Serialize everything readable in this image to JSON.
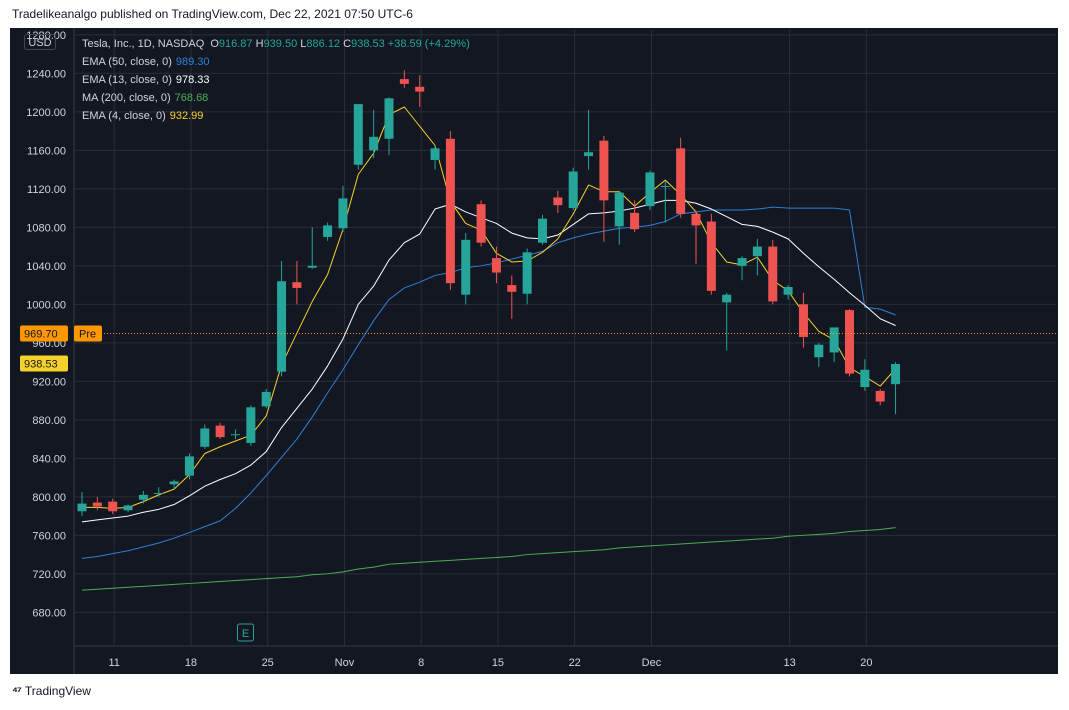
{
  "header": {
    "text": "Tradelikeanalgo published on TradingView.com, Dec 22, 2021 07:50 UTC-6"
  },
  "footer": {
    "brand": "TradingView"
  },
  "currency_button": "USD",
  "legend": {
    "symbol": "Tesla, Inc., 1D, NASDAQ",
    "ohlc": [
      {
        "k": "O",
        "v": "916.87"
      },
      {
        "k": "H",
        "v": "939.50"
      },
      {
        "k": "L",
        "v": "886.12"
      },
      {
        "k": "C",
        "v": "938.53"
      }
    ],
    "change": "+38.59 (+4.29%)",
    "studies": [
      {
        "label": "EMA (50, close, 0)",
        "value": "989.30",
        "color": "#2f7fd9"
      },
      {
        "label": "EMA (13, close, 0)",
        "value": "978.33",
        "color": "#ffffff"
      },
      {
        "label": "MA (200, close, 0)",
        "value": "768.68",
        "color": "#4caf50"
      },
      {
        "label": "EMA (4, close, 0)",
        "value": "932.99",
        "color": "#f5d22a"
      }
    ]
  },
  "colors": {
    "up": "#26a69a",
    "down": "#ef5350",
    "ema50": "#2f7fd9",
    "ema13": "#ffffff",
    "ma200": "#4caf50",
    "ema4": "#f5d22a",
    "pre": "#ff9800",
    "last": "#f5d22a"
  },
  "price_labels": [
    {
      "value": 969.7,
      "text": "969.70",
      "tag": "Pre",
      "kind": "pre"
    },
    {
      "value": 938.53,
      "text": "938.53",
      "kind": "last"
    }
  ],
  "event_marker": {
    "label": "E",
    "bar": 10
  },
  "chart_data": {
    "type": "candlestick",
    "ylim": [
      645,
      1285
    ],
    "y_ticks": [
      1280,
      1240,
      1200,
      1160,
      1120,
      1080,
      1040,
      1000,
      960,
      920,
      880,
      840,
      800,
      760,
      720,
      680
    ],
    "y_tick_labels": [
      "1280.00",
      "1240.00",
      "1200.00",
      "1160.00",
      "1120.00",
      "1080.00",
      "1040.00",
      "1000.00",
      "960.00",
      "920.00",
      "880.00",
      "840.00",
      "800.00",
      "760.00",
      "720.00",
      "680.00"
    ],
    "x_ticks": [
      {
        "bar": 2,
        "label": "11"
      },
      {
        "bar": 7,
        "label": "18"
      },
      {
        "bar": 12,
        "label": "25"
      },
      {
        "bar": 17,
        "label": "Nov"
      },
      {
        "bar": 22,
        "label": "8"
      },
      {
        "bar": 27,
        "label": "15"
      },
      {
        "bar": 32,
        "label": "22"
      },
      {
        "bar": 37,
        "label": "Dec"
      },
      {
        "bar": 46,
        "label": "13"
      },
      {
        "bar": 51,
        "label": "20"
      }
    ],
    "x_count": 55,
    "candles": [
      [
        785,
        805,
        780,
        793
      ],
      [
        794,
        800,
        786,
        790
      ],
      [
        795,
        798,
        782,
        785
      ],
      [
        786,
        792,
        784,
        791
      ],
      [
        797,
        806,
        793,
        802
      ],
      [
        804,
        810,
        800,
        804
      ],
      [
        813,
        818,
        808,
        816
      ],
      [
        822,
        845,
        818,
        842
      ],
      [
        852,
        875,
        850,
        871
      ],
      [
        874,
        877,
        860,
        862
      ],
      [
        864,
        870,
        860,
        865
      ],
      [
        856,
        895,
        853,
        893
      ],
      [
        894,
        912,
        892,
        909
      ],
      [
        930,
        1045,
        925,
        1024
      ],
      [
        1023,
        1045,
        1000,
        1017
      ],
      [
        1038,
        1080,
        1037,
        1040
      ],
      [
        1070,
        1085,
        1066,
        1082
      ],
      [
        1079,
        1123,
        1075,
        1110
      ],
      [
        1145,
        1208,
        1140,
        1208
      ],
      [
        1160,
        1202,
        1152,
        1174
      ],
      [
        1172,
        1215,
        1155,
        1214
      ],
      [
        1234,
        1243,
        1225,
        1229
      ],
      [
        1226,
        1238,
        1205,
        1221
      ],
      [
        1150,
        1165,
        1140,
        1162
      ],
      [
        1172,
        1180,
        1015,
        1022
      ],
      [
        1010,
        1074,
        1000,
        1067
      ],
      [
        1104,
        1108,
        1060,
        1064
      ],
      [
        1048,
        1060,
        1022,
        1033
      ],
      [
        1020,
        1030,
        985,
        1013
      ],
      [
        1011,
        1058,
        1000,
        1054
      ],
      [
        1064,
        1093,
        1062,
        1089
      ],
      [
        1111,
        1118,
        1095,
        1103
      ],
      [
        1100,
        1142,
        1098,
        1138
      ],
      [
        1154,
        1202,
        1140,
        1158
      ],
      [
        1170,
        1175,
        1065,
        1108
      ],
      [
        1081,
        1118,
        1062,
        1116
      ],
      [
        1095,
        1108,
        1075,
        1078
      ],
      [
        1102,
        1139,
        1098,
        1137
      ],
      [
        1122,
        1128,
        1085,
        1123
      ],
      [
        1162,
        1173,
        1090,
        1094
      ],
      [
        1094,
        1097,
        1042,
        1082
      ],
      [
        1086,
        1094,
        1010,
        1014
      ],
      [
        1002,
        1012,
        952,
        1010
      ],
      [
        1040,
        1050,
        1025,
        1048
      ],
      [
        1050,
        1068,
        1030,
        1060
      ],
      [
        1060,
        1067,
        1000,
        1003
      ],
      [
        1010,
        1020,
        1005,
        1018
      ],
      [
        1000,
        1012,
        955,
        966
      ],
      [
        945,
        960,
        935,
        958
      ],
      [
        950,
        970,
        940,
        976
      ],
      [
        994,
        995,
        925,
        928
      ],
      [
        914,
        943,
        910,
        932
      ],
      [
        910,
        912,
        895,
        899
      ],
      [
        917,
        940,
        886,
        938
      ]
    ],
    "series": [
      {
        "name": "EMA (50, close, 0)",
        "color": "#2f7fd9",
        "values": [
          736,
          738,
          741,
          744,
          748,
          752,
          757,
          763,
          769,
          775,
          788,
          804,
          822,
          841,
          860,
          883,
          908,
          932,
          958,
          983,
          1005,
          1017,
          1023,
          1030,
          1033,
          1038,
          1040,
          1043,
          1047,
          1051,
          1055,
          1064,
          1069,
          1073,
          1076,
          1079,
          1080,
          1082,
          1086,
          1094,
          1096,
          1098,
          1098,
          1098,
          1099,
          1101,
          1100,
          1100,
          1100,
          1100,
          1098,
          997,
          995,
          989
        ]
      },
      {
        "name": "EMA (13, close, 0)",
        "color": "#ffffff",
        "values": [
          774,
          776,
          778,
          780,
          784,
          787,
          792,
          801,
          811,
          818,
          824,
          833,
          847,
          872,
          892,
          912,
          936,
          964,
          1000,
          1019,
          1046,
          1064,
          1073,
          1099,
          1104,
          1096,
          1090,
          1084,
          1074,
          1069,
          1068,
          1072,
          1083,
          1094,
          1095,
          1097,
          1100,
          1104,
          1108,
          1108,
          1105,
          1099,
          1091,
          1083,
          1081,
          1075,
          1068,
          1053,
          1039,
          1026,
          1012,
          999,
          985,
          978
        ]
      },
      {
        "name": "MA (200, close, 0)",
        "color": "#4caf50",
        "values": [
          703,
          704,
          705,
          706,
          707,
          708,
          709,
          710,
          711,
          712,
          713,
          714,
          715,
          716,
          717,
          719,
          720,
          722,
          725,
          727,
          730,
          731,
          732,
          733,
          734,
          735,
          736,
          737,
          738,
          740,
          741,
          742,
          743,
          744,
          745,
          747,
          748,
          749,
          750,
          751,
          752,
          753,
          754,
          755,
          756,
          757,
          759,
          760,
          761,
          762,
          764,
          765,
          766,
          768
        ]
      },
      {
        "name": "EMA (4, close, 0)",
        "color": "#f5d22a",
        "values": [
          789,
          789,
          788,
          789,
          795,
          802,
          808,
          823,
          845,
          852,
          858,
          864,
          884,
          937,
          970,
          1003,
          1031,
          1078,
          1135,
          1157,
          1197,
          1205,
          1185,
          1165,
          1107,
          1084,
          1077,
          1053,
          1044,
          1045,
          1054,
          1068,
          1094,
          1124,
          1117,
          1117,
          1102,
          1116,
          1129,
          1114,
          1096,
          1064,
          1044,
          1041,
          1049,
          1025,
          1014,
          991,
          972,
          963,
          934,
          925,
          915,
          933
        ]
      }
    ]
  }
}
